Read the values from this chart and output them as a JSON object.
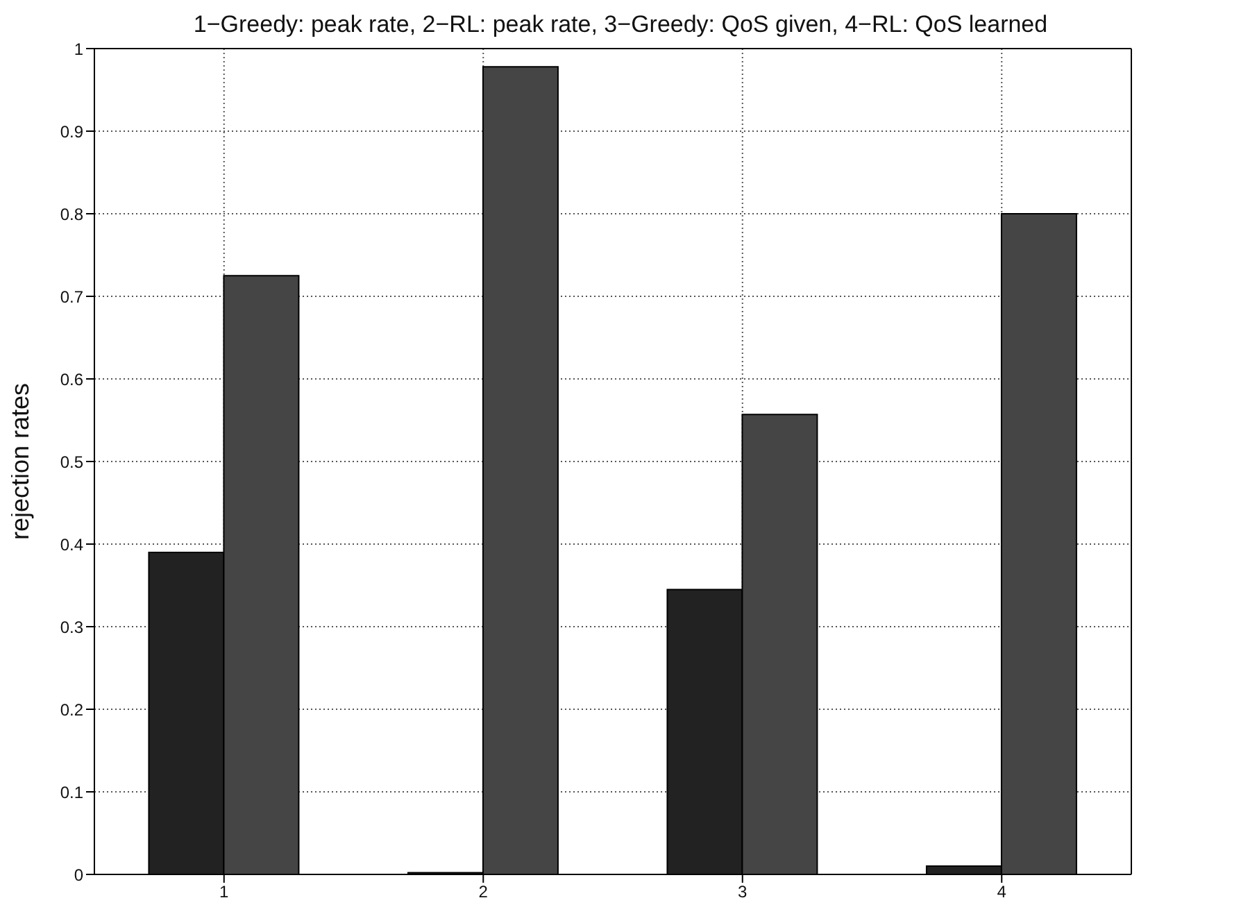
{
  "chart_data": {
    "type": "bar",
    "title": "1−Greedy: peak rate, 2−RL: peak rate, 3−Greedy: QoS given, 4−RL: QoS learned",
    "ylabel": "rejection rates",
    "categories": [
      "1",
      "2",
      "3",
      "4"
    ],
    "series": [
      {
        "color": "#222222",
        "values": [
          0.39,
          0.002,
          0.345,
          0.01
        ]
      },
      {
        "color": "#454545",
        "values": [
          0.725,
          0.978,
          0.557,
          0.8
        ]
      }
    ],
    "ylim": [
      0,
      1
    ],
    "yticks": [
      0,
      0.1,
      0.2,
      0.3,
      0.4,
      0.5,
      0.6,
      0.7,
      0.8,
      0.9,
      1
    ],
    "grid": true,
    "legend": false
  }
}
